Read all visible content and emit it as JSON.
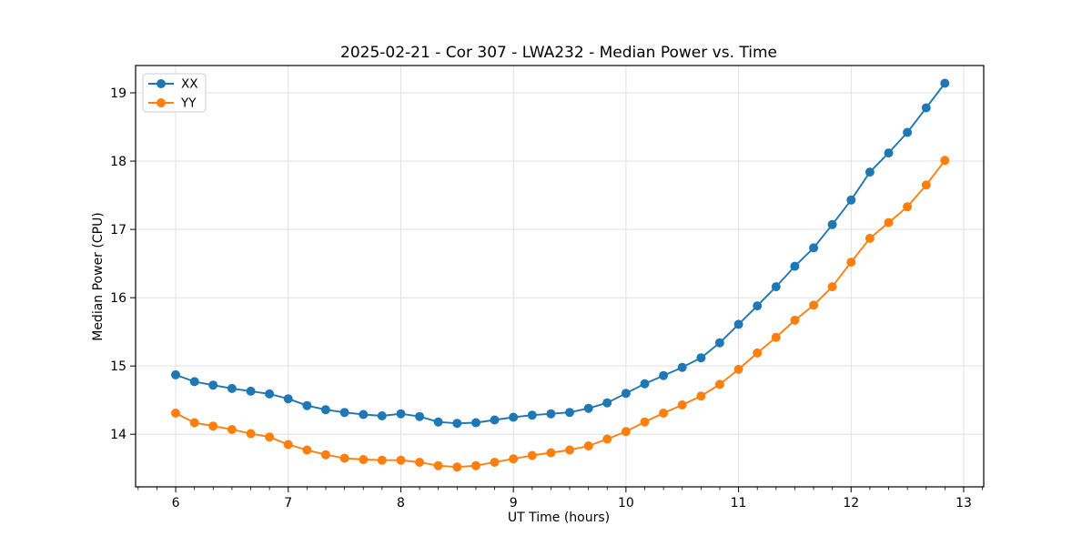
{
  "chart_data": {
    "type": "line",
    "title": "2025-02-21 - Cor 307 - LWA232 - Median Power vs. Time",
    "xlabel": "UT Time (hours)",
    "ylabel": "Median Power (CPU)",
    "xlim": [
      5.644,
      13.178
    ],
    "ylim": [
      13.23,
      19.4
    ],
    "xticks": [
      "6",
      "7",
      "8",
      "9",
      "10",
      "11",
      "12",
      "13"
    ],
    "xtick_values": [
      6,
      7,
      8,
      9,
      10,
      11,
      12,
      13
    ],
    "yticks": [
      "14",
      "15",
      "16",
      "17",
      "18",
      "19"
    ],
    "ytick_values": [
      14,
      15,
      16,
      17,
      18,
      19
    ],
    "x_minor_tick_step": 0.16667,
    "grid": true,
    "legend_position": "upper left",
    "x": [
      6.0,
      6.167,
      6.333,
      6.5,
      6.667,
      6.833,
      7.0,
      7.167,
      7.333,
      7.5,
      7.667,
      7.833,
      8.0,
      8.167,
      8.333,
      8.5,
      8.667,
      8.833,
      9.0,
      9.167,
      9.333,
      9.5,
      9.667,
      9.833,
      10.0,
      10.167,
      10.333,
      10.5,
      10.667,
      10.833,
      11.0,
      11.167,
      11.333,
      11.5,
      11.667,
      11.833,
      12.0,
      12.167,
      12.333,
      12.5,
      12.667,
      12.833
    ],
    "series": [
      {
        "name": "XX",
        "color": "#1f77b4",
        "values": [
          14.87,
          14.77,
          14.72,
          14.67,
          14.63,
          14.59,
          14.52,
          14.42,
          14.36,
          14.32,
          14.29,
          14.27,
          14.3,
          14.26,
          14.18,
          14.16,
          14.17,
          14.21,
          14.25,
          14.28,
          14.3,
          14.32,
          14.38,
          14.46,
          14.6,
          14.74,
          14.86,
          14.98,
          15.12,
          15.34,
          15.61,
          15.88,
          16.16,
          16.46,
          16.73,
          17.07,
          17.43,
          17.84,
          18.12,
          18.42,
          18.78,
          19.14
        ]
      },
      {
        "name": "YY",
        "color": "#ff7f0e",
        "values": [
          14.31,
          14.17,
          14.12,
          14.07,
          14.01,
          13.96,
          13.85,
          13.77,
          13.7,
          13.65,
          13.63,
          13.62,
          13.62,
          13.59,
          13.54,
          13.52,
          13.54,
          13.59,
          13.64,
          13.69,
          13.73,
          13.77,
          13.83,
          13.93,
          14.04,
          14.18,
          14.31,
          14.43,
          14.56,
          14.73,
          14.95,
          15.19,
          15.42,
          15.67,
          15.89,
          16.16,
          16.52,
          16.87,
          17.1,
          17.33,
          17.65,
          18.01
        ]
      }
    ]
  }
}
